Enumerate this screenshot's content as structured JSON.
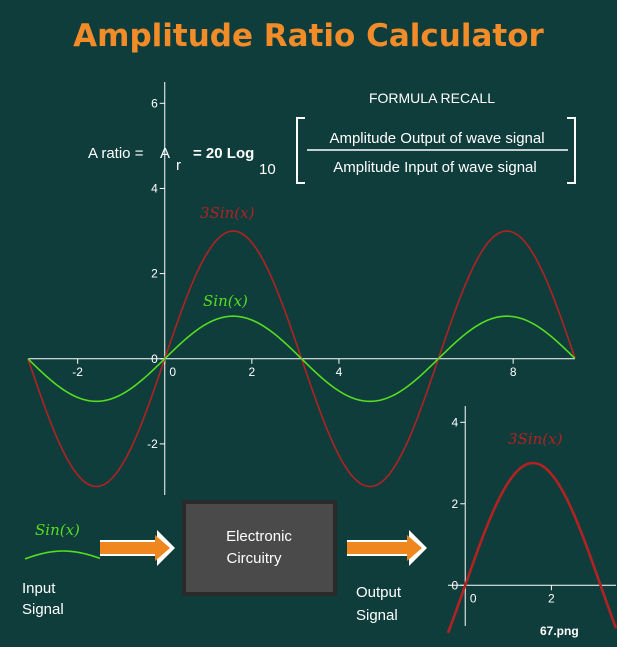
{
  "title": "Amplitude Ratio Calculator",
  "formula": {
    "heading": "FORMULA RECALL",
    "lhs_a": "A ratio =",
    "lhs_b": "A",
    "lhs_sub": "r",
    "eq": "= 20 Log",
    "log_sub": "10",
    "numerator": "Amplitude Output of wave signal",
    "denominator": "Amplitude Input of wave signal"
  },
  "colors": {
    "background": "#0f3d3b",
    "title": "#f28c28",
    "output_curve": "#b22222",
    "input_curve": "#55dd22",
    "arrow": "#f0871e",
    "box": "#4a4a4a"
  },
  "block_diagram": {
    "input_curve_label": "Sin(x)",
    "input_label_1": "Input",
    "input_label_2": "Signal",
    "box_label_1": "Electronic",
    "box_label_2": "Circuitry",
    "output_label_1": "Output",
    "output_label_2": "Signal"
  },
  "filename": "67.png",
  "chart_data": [
    {
      "type": "line",
      "series": [
        {
          "name": "3Sin(x)",
          "function": "3*sin(x)",
          "x_range": [
            -3.14,
            9.42
          ]
        },
        {
          "name": "Sin(x)",
          "function": "sin(x)",
          "x_range": [
            -3.14,
            9.42
          ]
        }
      ],
      "xlim": [
        -3.14,
        9.42
      ],
      "ylim": [
        -3.2,
        6.5
      ],
      "xticks": [
        -2,
        0,
        2,
        4,
        8
      ],
      "yticks": [
        -2,
        0,
        2,
        4,
        6
      ],
      "grid": false
    },
    {
      "type": "line",
      "series": [
        {
          "name": "3Sin(x)",
          "function": "3*sin(x)",
          "x_range": [
            -0.4,
            3.5
          ]
        }
      ],
      "xlim": [
        -0.4,
        3.5
      ],
      "ylim": [
        -1,
        4.4
      ],
      "xticks": [
        0,
        2
      ],
      "yticks": [
        0,
        2,
        4
      ],
      "grid": false
    }
  ]
}
